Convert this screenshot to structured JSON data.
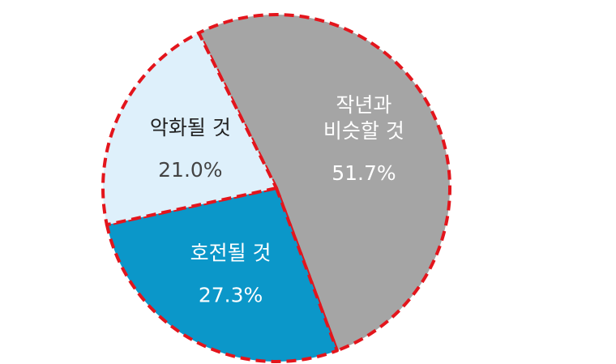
{
  "chart_data": {
    "type": "pie",
    "categories": [
      "작년과\n비슷할 것",
      "호전될 것",
      "악화될 것"
    ],
    "values": [
      51.7,
      27.3,
      21.0
    ],
    "value_labels": [
      "51.7%",
      "27.3%",
      "21.0%"
    ],
    "colors": [
      "#a5a5a5",
      "#0b97c9",
      "#def0fb"
    ]
  }
}
